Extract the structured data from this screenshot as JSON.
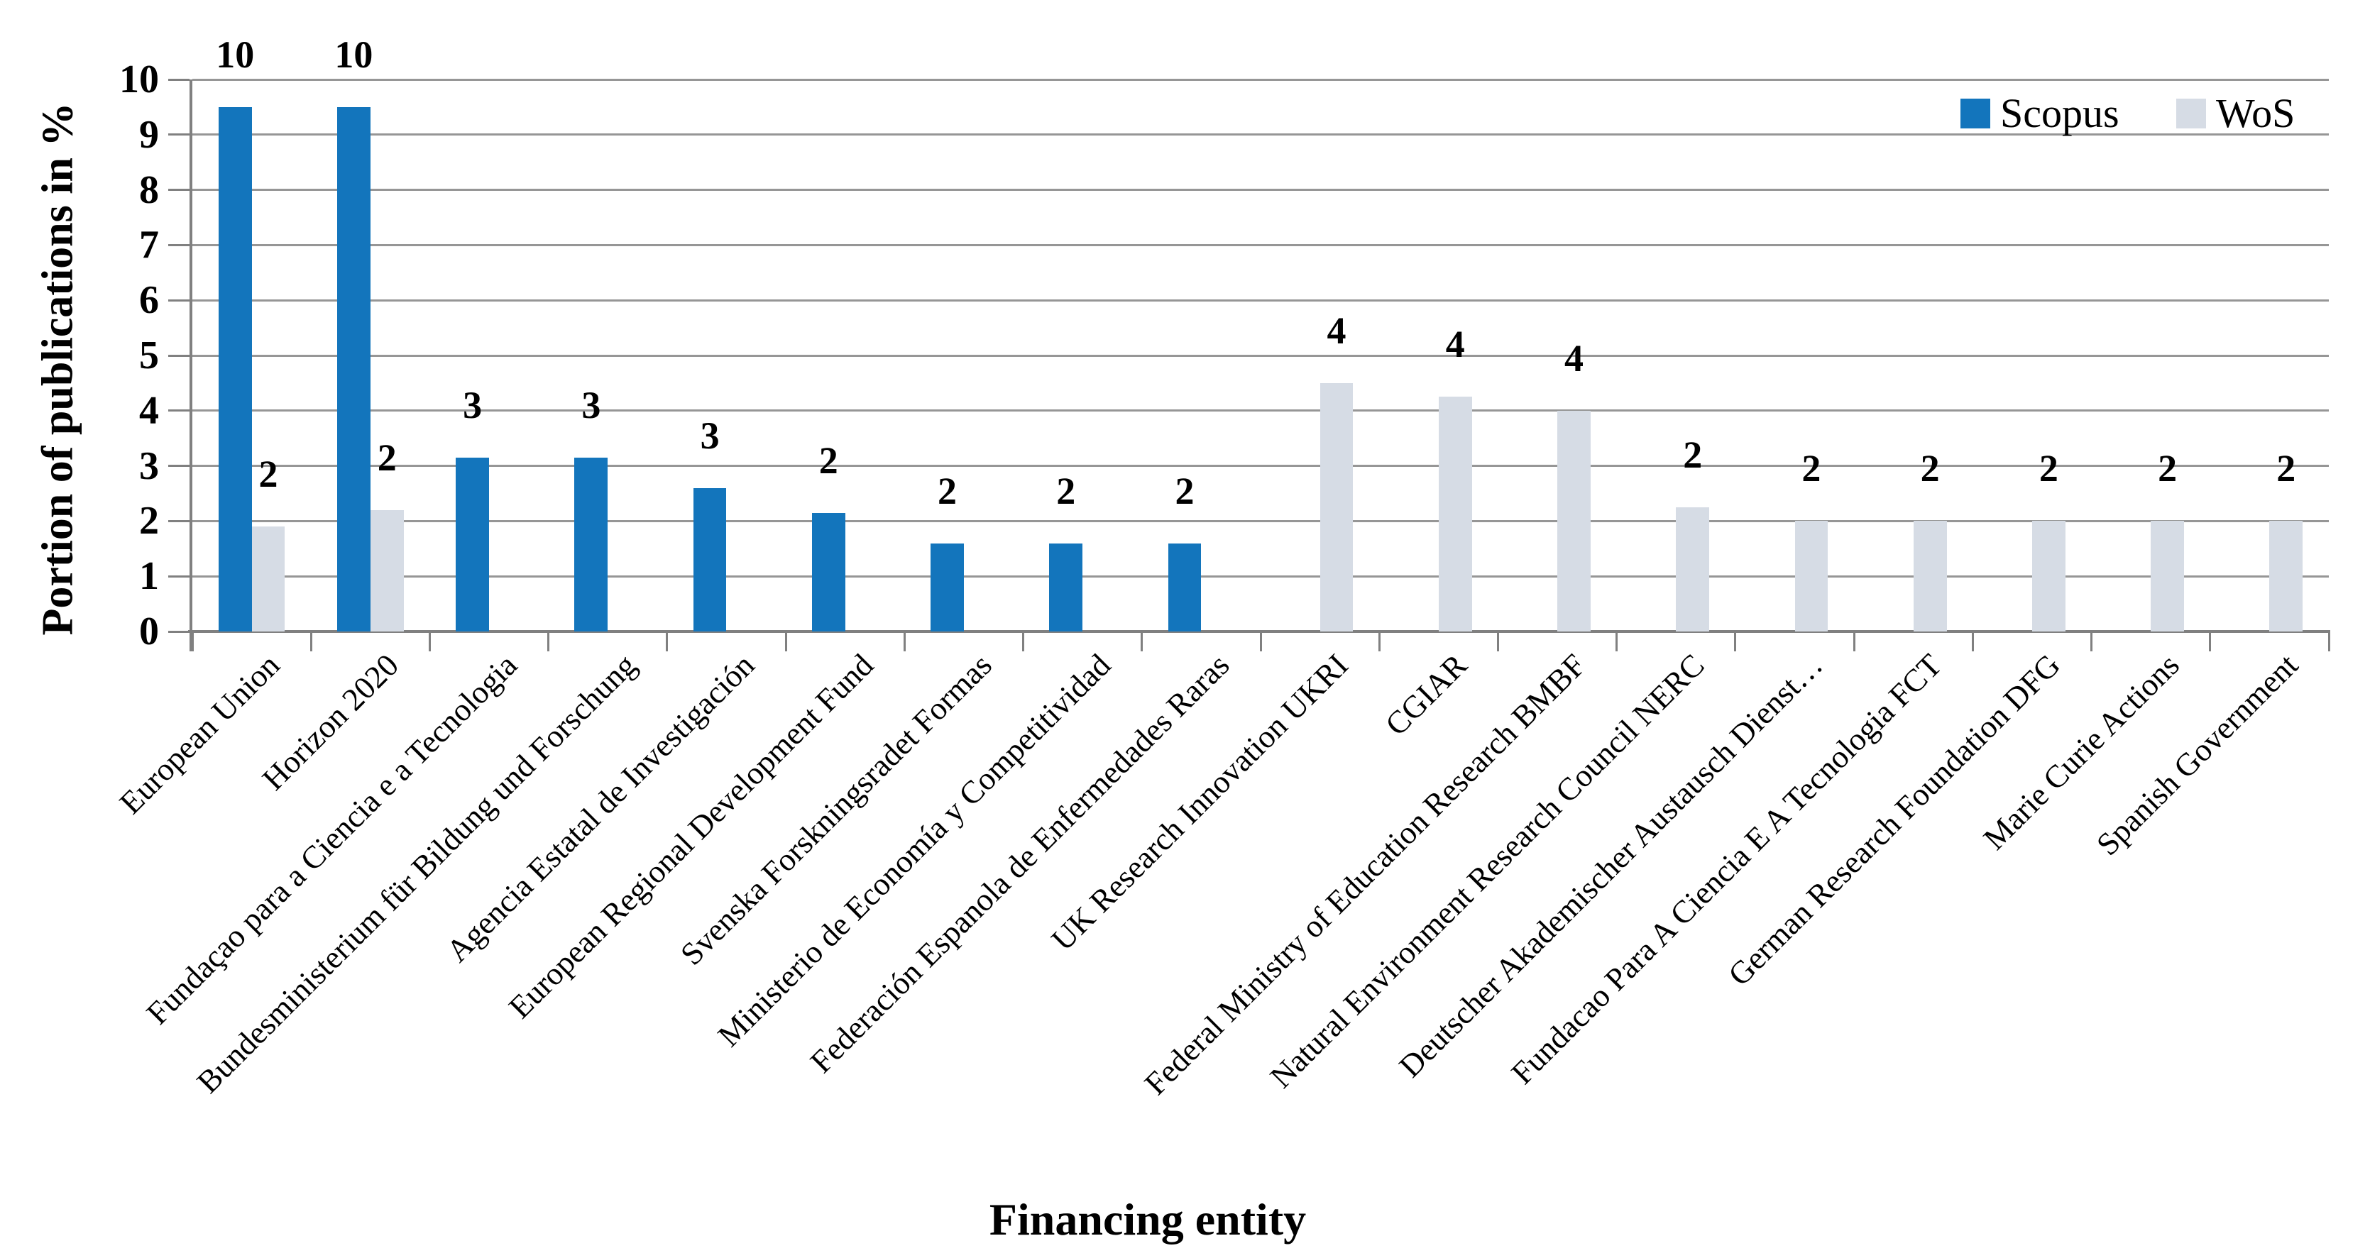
{
  "chart_data": {
    "type": "bar",
    "title": "",
    "xlabel": "Financing entity",
    "ylabel": "Portion of publications in %",
    "ylim": [
      0,
      10
    ],
    "ytick_step": 1,
    "yticks": [
      "0",
      "1",
      "2",
      "3",
      "4",
      "5",
      "6",
      "7",
      "8",
      "9",
      "10"
    ],
    "grid": true,
    "legend_position": "top-right",
    "categories": [
      "European Union",
      "Horizon 2020",
      "Fundaçao para a Ciencia e a Tecnologia",
      "Bundesministerium für Bildung und Forschung",
      "Agencia Estatal de Investigación",
      "European Regional Development Fund",
      "Svenska Forskningsradet Formas",
      "Ministerio de Economía y Competitividad",
      "Federación Espanola de Enfermedades Raras",
      "UK Research Innovation UKRI",
      "CGIAR",
      "Federal Ministry of Education Research BMBF",
      "Natural Environment Research Council NERC",
      "Deutscher Akademischer Austausch Dienst…",
      "Fundacao Para A Ciencia E A Tecnologia FCT",
      "German Research Foundation DFG",
      "Marie Curie Actions",
      "Spanish Government"
    ],
    "series": [
      {
        "name": "Scopus",
        "color": "#1375BC",
        "values": [
          9.5,
          9.5,
          3.15,
          3.15,
          2.6,
          2.15,
          1.6,
          1.6,
          1.6,
          null,
          null,
          null,
          null,
          null,
          null,
          null,
          null,
          null
        ],
        "labels": [
          "10",
          "10",
          "3",
          "3",
          "3",
          "2",
          "2",
          "2",
          "2",
          null,
          null,
          null,
          null,
          null,
          null,
          null,
          null,
          null
        ]
      },
      {
        "name": "WoS",
        "color": "#D6DCE5",
        "values": [
          1.9,
          2.2,
          null,
          null,
          null,
          null,
          null,
          null,
          null,
          4.5,
          4.25,
          4.0,
          2.25,
          2.0,
          2.0,
          2.0,
          2.0,
          2.0
        ],
        "labels": [
          "2",
          "2",
          null,
          null,
          null,
          null,
          null,
          null,
          null,
          "4",
          "4",
          "4",
          "2",
          "2",
          "2",
          "2",
          "2",
          "2"
        ]
      }
    ]
  },
  "legend": {
    "items": [
      {
        "label": "Scopus",
        "color": "#1375BC"
      },
      {
        "label": "WoS",
        "color": "#D6DCE5"
      }
    ]
  },
  "colors": {
    "gridline": "#969696",
    "axis": "#808080",
    "text": "#000000",
    "background": "#ffffff"
  }
}
